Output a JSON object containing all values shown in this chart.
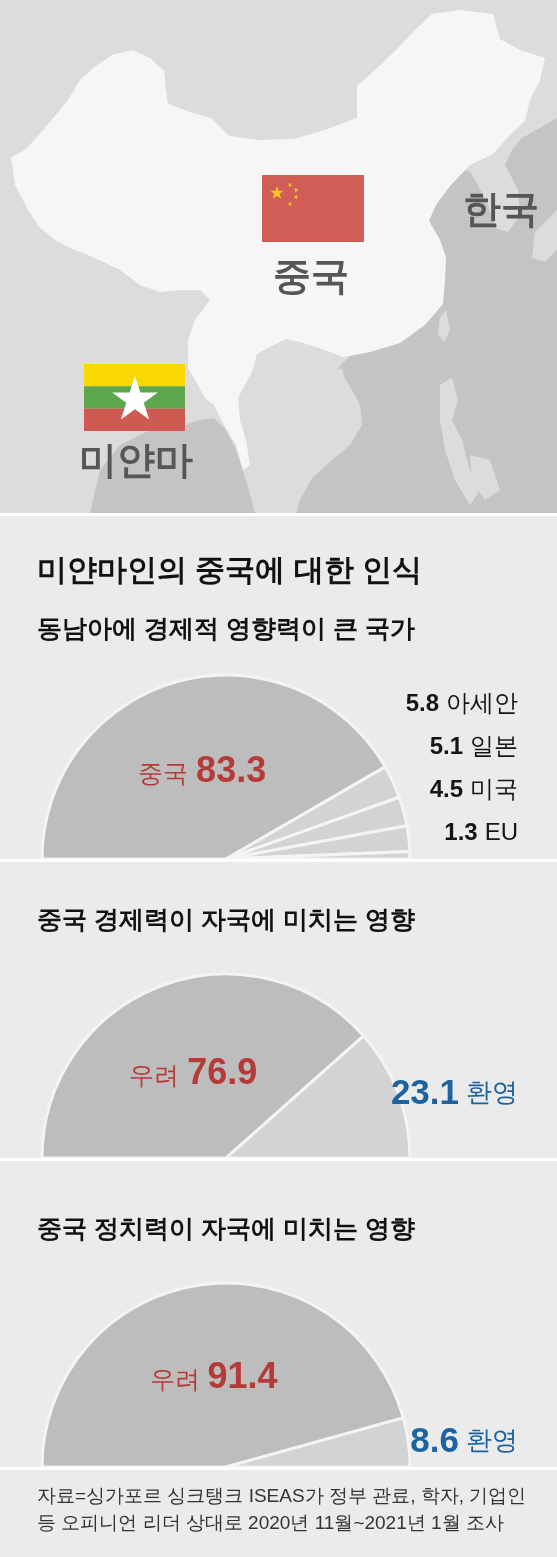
{
  "chart_data": [
    {
      "type": "other",
      "annotations": [
        "한국",
        "중국",
        "미얀마"
      ]
    },
    {
      "type": "pie",
      "title": "미얀마인의 중국에 대한 인식",
      "subtitle": "동남아에 경제적 영향력이 큰 국가",
      "categories": [
        "중국",
        "아세안",
        "일본",
        "미국",
        "EU"
      ],
      "values": [
        83.3,
        5.8,
        5.1,
        4.5,
        1.3
      ],
      "colors": [
        "#bdbdbd",
        "#d3d3d5",
        "#d3d3d5",
        "#d3d3d5",
        "#d3d3d5"
      ],
      "data_labels": true
    },
    {
      "type": "pie",
      "title": "중국 경제력이 자국에 미치는 영향",
      "categories": [
        "우려",
        "환영"
      ],
      "values": [
        76.9,
        23.1
      ],
      "colors": [
        "#bdbdbd",
        "#d3d3d5"
      ],
      "data_labels": true
    },
    {
      "type": "pie",
      "title": "중국 정치력이 자국에 미치는 영향",
      "categories": [
        "우려",
        "환영"
      ],
      "values": [
        91.4,
        8.6
      ],
      "colors": [
        "#bdbdbd",
        "#d3d3d5"
      ],
      "data_labels": true,
      "annotations": [
        "자료=싱가포르 싱크탱크 ISEAS가 정부 관료, 학자, 기업인 등 오피니언 리더 상대로 2020년 11월~2021년 1월 조사"
      ]
    }
  ]
}
